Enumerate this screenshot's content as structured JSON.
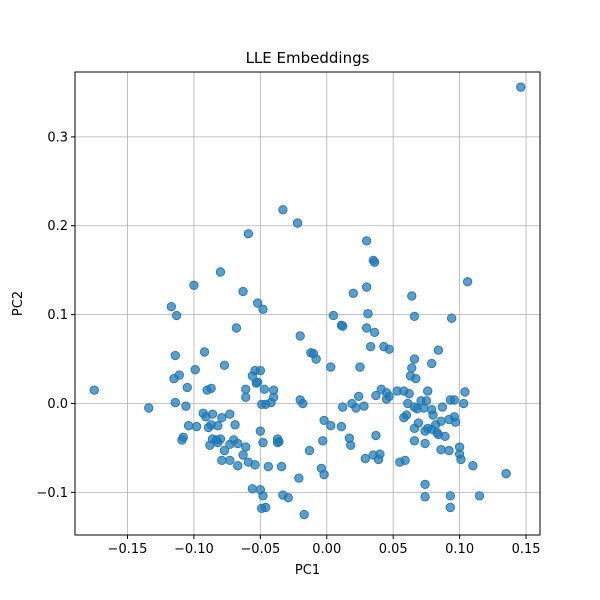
{
  "chart_data": {
    "type": "scatter",
    "title": "LLE Embeddings",
    "xlabel": "PC1",
    "ylabel": "PC2",
    "xlim": [
      -0.1895,
      0.1605
    ],
    "ylim": [
      -0.148,
      0.373
    ],
    "xticks": [
      -0.15,
      -0.1,
      -0.05,
      0.0,
      0.05,
      0.1,
      0.15
    ],
    "xtick_labels": [
      "−0.15",
      "−0.10",
      "−0.05",
      "0.00",
      "0.05",
      "0.10",
      "0.15"
    ],
    "yticks": [
      -0.1,
      0.0,
      0.1,
      0.2,
      0.3
    ],
    "ytick_labels": [
      "−0.1",
      "0.0",
      "0.1",
      "0.2",
      "0.3"
    ],
    "grid": true,
    "legend": "none",
    "color": "#1f77b4",
    "points": [
      [
        0.146,
        0.356
      ],
      [
        -0.033,
        0.218
      ],
      [
        -0.022,
        0.203
      ],
      [
        -0.059,
        0.191
      ],
      [
        0.03,
        0.183
      ],
      [
        0.035,
        0.161
      ],
      [
        0.036,
        0.159
      ],
      [
        -0.08,
        0.148
      ],
      [
        0.106,
        0.137
      ],
      [
        -0.1,
        0.133
      ],
      [
        0.03,
        0.131
      ],
      [
        -0.063,
        0.126
      ],
      [
        0.02,
        0.124
      ],
      [
        0.064,
        0.121
      ],
      [
        -0.117,
        0.109
      ],
      [
        -0.048,
        0.106
      ],
      [
        -0.052,
        0.113
      ],
      [
        -0.113,
        0.099
      ],
      [
        0.005,
        0.099
      ],
      [
        0.031,
        0.101
      ],
      [
        0.066,
        0.098
      ],
      [
        0.094,
        0.096
      ],
      [
        0.011,
        0.088
      ],
      [
        0.012,
        0.087
      ],
      [
        0.03,
        0.085
      ],
      [
        -0.068,
        0.085
      ],
      [
        0.036,
        0.08
      ],
      [
        -0.02,
        0.076
      ],
      [
        0.033,
        0.064
      ],
      [
        0.043,
        0.064
      ],
      [
        0.047,
        0.061
      ],
      [
        0.084,
        0.06
      ],
      [
        -0.092,
        0.058
      ],
      [
        -0.01,
        0.056
      ],
      [
        -0.012,
        0.057
      ],
      [
        -0.008,
        0.05
      ],
      [
        0.066,
        0.05
      ],
      [
        -0.114,
        0.054
      ],
      [
        0.079,
        0.045
      ],
      [
        -0.077,
        0.043
      ],
      [
        0.003,
        0.041
      ],
      [
        0.025,
        0.041
      ],
      [
        0.064,
        0.04
      ],
      [
        -0.054,
        0.037
      ],
      [
        -0.05,
        0.037
      ],
      [
        -0.056,
        0.031
      ],
      [
        0.063,
        0.031
      ],
      [
        -0.115,
        0.028
      ],
      [
        -0.111,
        0.032
      ],
      [
        -0.105,
        0.018
      ],
      [
        -0.099,
        0.038
      ],
      [
        -0.09,
        0.015
      ],
      [
        -0.087,
        0.017
      ],
      [
        0.067,
        0.028
      ],
      [
        -0.052,
        0.024
      ],
      [
        -0.053,
        0.023
      ],
      [
        -0.061,
        0.016
      ],
      [
        -0.047,
        0.016
      ],
      [
        -0.04,
        0.015
      ],
      [
        0.041,
        0.016
      ],
      [
        0.045,
        0.012
      ],
      [
        0.047,
        0.008
      ],
      [
        0.053,
        0.014
      ],
      [
        0.058,
        0.014
      ],
      [
        0.062,
        0.011
      ],
      [
        0.076,
        0.014
      ],
      [
        0.104,
        0.013
      ],
      [
        0.024,
        0.008
      ],
      [
        0.037,
        0.009
      ],
      [
        -0.175,
        0.015
      ],
      [
        -0.134,
        -0.005
      ],
      [
        -0.114,
        0.001
      ],
      [
        -0.106,
        -0.003
      ],
      [
        -0.061,
        0.007
      ],
      [
        -0.049,
        -0.001
      ],
      [
        -0.046,
        -0.001
      ],
      [
        -0.042,
        0.001
      ],
      [
        -0.04,
        0.007
      ],
      [
        -0.02,
        0.004
      ],
      [
        -0.018,
        0.0
      ],
      [
        0.045,
        0.005
      ],
      [
        0.061,
        0.0
      ],
      [
        0.066,
        -0.004
      ],
      [
        0.071,
        0.003
      ],
      [
        0.075,
        0.003
      ],
      [
        0.096,
        0.004
      ],
      [
        0.103,
        0.0
      ],
      [
        0.093,
        0.004
      ],
      [
        0.087,
        -0.004
      ],
      [
        0.019,
        0.0
      ],
      [
        0.012,
        -0.004
      ],
      [
        0.022,
        -0.005
      ],
      [
        0.028,
        -0.003
      ],
      [
        -0.093,
        -0.011
      ],
      [
        -0.086,
        -0.012
      ],
      [
        -0.073,
        -0.012
      ],
      [
        -0.091,
        -0.015
      ],
      [
        -0.079,
        -0.016
      ],
      [
        -0.002,
        -0.019
      ],
      [
        0.068,
        -0.006
      ],
      [
        0.073,
        -0.005
      ],
      [
        0.079,
        -0.007
      ],
      [
        0.08,
        -0.013
      ],
      [
        0.086,
        -0.02
      ],
      [
        0.092,
        -0.018
      ],
      [
        0.096,
        -0.015
      ],
      [
        0.097,
        -0.021
      ],
      [
        0.082,
        -0.024
      ],
      [
        0.069,
        -0.022
      ],
      [
        0.06,
        -0.013
      ],
      [
        0.058,
        -0.016
      ],
      [
        0.011,
        -0.026
      ],
      [
        0.003,
        -0.025
      ],
      [
        -0.098,
        -0.026
      ],
      [
        -0.104,
        -0.025
      ],
      [
        -0.108,
        -0.038
      ],
      [
        -0.109,
        -0.041
      ],
      [
        -0.089,
        -0.027
      ],
      [
        -0.087,
        -0.024
      ],
      [
        -0.082,
        -0.025
      ],
      [
        -0.069,
        -0.024
      ],
      [
        -0.05,
        -0.031
      ],
      [
        -0.086,
        -0.04
      ],
      [
        -0.088,
        -0.047
      ],
      [
        -0.082,
        -0.044
      ],
      [
        -0.08,
        -0.04
      ],
      [
        -0.073,
        -0.046
      ],
      [
        -0.077,
        -0.053
      ],
      [
        -0.083,
        -0.041
      ],
      [
        -0.07,
        -0.041
      ],
      [
        -0.067,
        -0.045
      ],
      [
        -0.061,
        -0.049
      ],
      [
        -0.063,
        -0.058
      ],
      [
        -0.048,
        -0.044
      ],
      [
        -0.037,
        -0.044
      ],
      [
        -0.037,
        -0.04
      ],
      [
        -0.036,
        -0.043
      ],
      [
        -0.073,
        -0.064
      ],
      [
        -0.079,
        -0.064
      ],
      [
        -0.067,
        -0.07
      ],
      [
        -0.059,
        -0.066
      ],
      [
        -0.054,
        -0.069
      ],
      [
        -0.044,
        -0.071
      ],
      [
        -0.034,
        -0.071
      ],
      [
        -0.021,
        -0.084
      ],
      [
        -0.003,
        -0.042
      ],
      [
        -0.013,
        -0.053
      ],
      [
        0.017,
        -0.039
      ],
      [
        0.018,
        -0.047
      ],
      [
        0.037,
        -0.036
      ],
      [
        0.035,
        -0.058
      ],
      [
        0.039,
        -0.063
      ],
      [
        0.04,
        -0.057
      ],
      [
        0.029,
        -0.062
      ],
      [
        0.055,
        -0.066
      ],
      [
        0.059,
        -0.064
      ],
      [
        0.066,
        -0.042
      ],
      [
        0.066,
        -0.028
      ],
      [
        0.074,
        -0.045
      ],
      [
        0.074,
        -0.031
      ],
      [
        0.076,
        -0.028
      ],
      [
        0.079,
        -0.029
      ],
      [
        0.083,
        -0.033
      ],
      [
        0.084,
        -0.035
      ],
      [
        0.089,
        -0.037
      ],
      [
        0.086,
        -0.052
      ],
      [
        0.092,
        -0.053
      ],
      [
        0.1,
        -0.057
      ],
      [
        0.1,
        -0.049
      ],
      [
        0.101,
        -0.063
      ],
      [
        0.11,
        -0.07
      ],
      [
        0.074,
        -0.091
      ],
      [
        0.074,
        -0.105
      ],
      [
        0.093,
        -0.104
      ],
      [
        0.093,
        -0.117
      ],
      [
        0.115,
        -0.104
      ],
      [
        0.135,
        -0.079
      ],
      [
        -0.056,
        -0.096
      ],
      [
        -0.05,
        -0.097
      ],
      [
        -0.048,
        -0.104
      ],
      [
        -0.033,
        -0.103
      ],
      [
        -0.029,
        -0.106
      ],
      [
        -0.049,
        -0.118
      ],
      [
        -0.046,
        -0.117
      ],
      [
        -0.017,
        -0.125
      ],
      [
        -0.004,
        -0.073
      ],
      [
        -0.002,
        -0.08
      ]
    ]
  }
}
